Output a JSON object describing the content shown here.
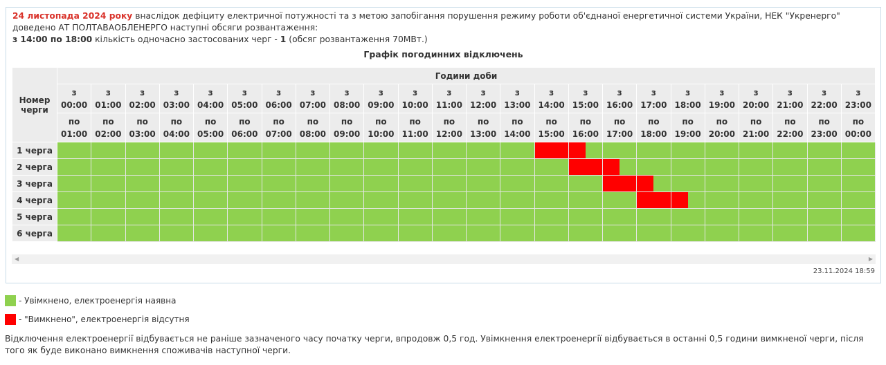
{
  "intro": {
    "date": "24 листопада 2024 року",
    "text": " внаслідок дефіциту електричної потужності та з метою запобігання порушення режиму роботи об'єднаної енергетичної системи України, НЕК \"Укренерго\" доведено АТ ПОЛТАВАОБЛЕНЕРГО наступні обсяги розвантаження:",
    "period": "з 14:00 по 18:00",
    "period_text": " кількість одночасно застосованих черг - ",
    "count": "1",
    "volume": " (обсяг розвантаження 70МВт.)"
  },
  "table": {
    "title": "Графік погодинних відключень",
    "queue_header": "Номер черги",
    "hours_header": "Години доби",
    "from_label": "з",
    "to_label": "по",
    "hours": [
      "00:00",
      "01:00",
      "02:00",
      "03:00",
      "04:00",
      "05:00",
      "06:00",
      "07:00",
      "08:00",
      "09:00",
      "10:00",
      "11:00",
      "12:00",
      "13:00",
      "14:00",
      "15:00",
      "16:00",
      "17:00",
      "18:00",
      "19:00",
      "20:00",
      "21:00",
      "22:00",
      "23:00"
    ],
    "hours_to": [
      "01:00",
      "02:00",
      "03:00",
      "04:00",
      "05:00",
      "06:00",
      "07:00",
      "08:00",
      "09:00",
      "10:00",
      "11:00",
      "12:00",
      "13:00",
      "14:00",
      "15:00",
      "16:00",
      "17:00",
      "18:00",
      "19:00",
      "20:00",
      "21:00",
      "22:00",
      "23:00",
      "00:00"
    ],
    "queues": [
      {
        "label": "1 черга",
        "off": [
          {
            "start": "14:00",
            "end": "15:30"
          }
        ]
      },
      {
        "label": "2 черга",
        "off": [
          {
            "start": "15:00",
            "end": "16:30"
          }
        ]
      },
      {
        "label": "3 черга",
        "off": [
          {
            "start": "16:00",
            "end": "17:30"
          }
        ]
      },
      {
        "label": "4 черга",
        "off": [
          {
            "start": "17:00",
            "end": "18:30"
          }
        ]
      },
      {
        "label": "5 черга",
        "off": []
      },
      {
        "label": "6 черга",
        "off": []
      }
    ]
  },
  "timestamp": "23.11.2024 18:59",
  "colors": {
    "on": "#8fd14f",
    "off": "#ff0000"
  },
  "legend": {
    "on": "- Увімкнено, електроенергія наявна",
    "off": "- \"Вимкнено\", електроенергія відсутня"
  },
  "footer": "Відключення електроенергії відбувається не раніше зазначеного часу початку черги, впродовж 0,5 год. Увімкнення електроенергії відбувається в останні 0,5 години вимкненої черги, після того як буде виконано вимкнення споживачів наступної черги."
}
